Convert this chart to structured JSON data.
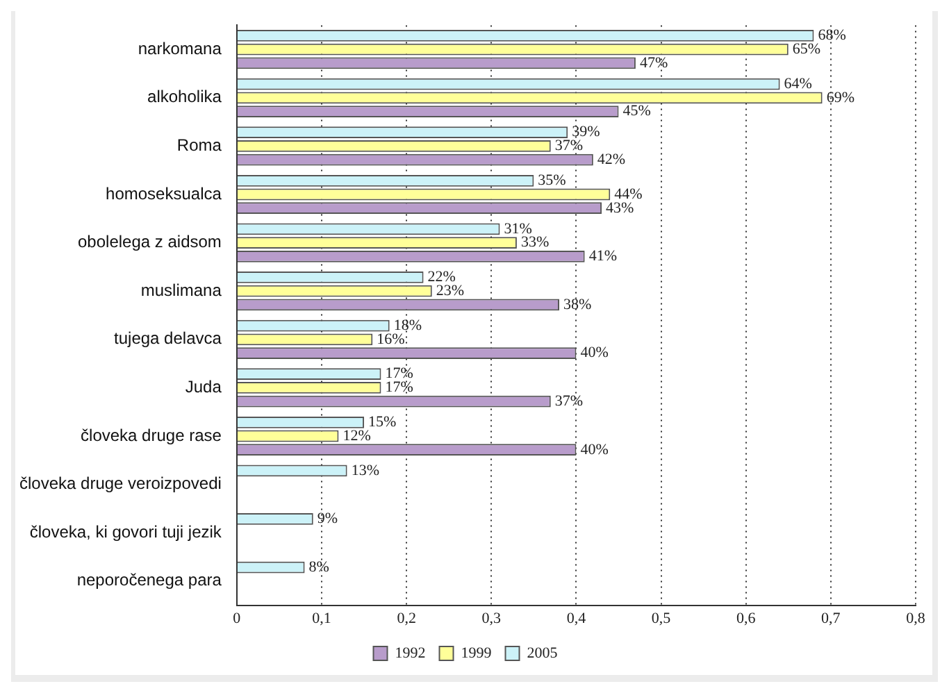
{
  "chart_data": {
    "type": "bar",
    "orientation": "horizontal",
    "categories": [
      "narkomana",
      "alkoholika",
      "Roma",
      "homoseksualca",
      "obolelega z aidsom",
      "muslimana",
      "tujega delavca",
      "Juda",
      "človeka druge rase",
      "človeka druge veroizpovedi",
      "človeka, ki govori tuji jezik",
      "neporočenega para"
    ],
    "series": [
      {
        "name": "1992",
        "color": "#b89ccb",
        "values": [
          0.47,
          0.45,
          0.42,
          0.43,
          0.41,
          0.38,
          0.4,
          0.37,
          0.4,
          null,
          null,
          null
        ],
        "value_labels": [
          "47%",
          "45%",
          "42%",
          "43%",
          "41%",
          "38%",
          "40%",
          "37%",
          "40%",
          null,
          null,
          null
        ]
      },
      {
        "name": "1999",
        "color": "#ffff99",
        "values": [
          0.65,
          0.69,
          0.37,
          0.44,
          0.33,
          0.23,
          0.16,
          0.17,
          0.12,
          null,
          null,
          null
        ],
        "value_labels": [
          "65%",
          "69%",
          "37%",
          "44%",
          "33%",
          "23%",
          "16%",
          "17%",
          "12%",
          null,
          null,
          null
        ]
      },
      {
        "name": "2005",
        "color": "#ccf2f8",
        "values": [
          0.68,
          0.64,
          0.39,
          0.35,
          0.31,
          0.22,
          0.18,
          0.17,
          0.15,
          0.13,
          0.09,
          0.08
        ],
        "value_labels": [
          "68%",
          "64%",
          "39%",
          "35%",
          "31%",
          "22%",
          "18%",
          "17%",
          "15%",
          "13%",
          "9%",
          "8%"
        ]
      }
    ],
    "xlim": [
      0,
      0.8
    ],
    "xticks": [
      0,
      {
        "value": 0.1,
        "label": "0,1"
      },
      {
        "value": 0.2,
        "label": "0,2"
      },
      {
        "value": 0.3,
        "label": "0,3"
      },
      {
        "value": 0.4,
        "label": "0,4"
      },
      {
        "value": 0.5,
        "label": "0,5"
      },
      {
        "value": 0.6,
        "label": "0,6"
      },
      {
        "value": 0.7,
        "label": "0,7"
      },
      {
        "value": 0.8,
        "label": "0,8"
      }
    ],
    "grid": "x",
    "legend": "bottom"
  }
}
